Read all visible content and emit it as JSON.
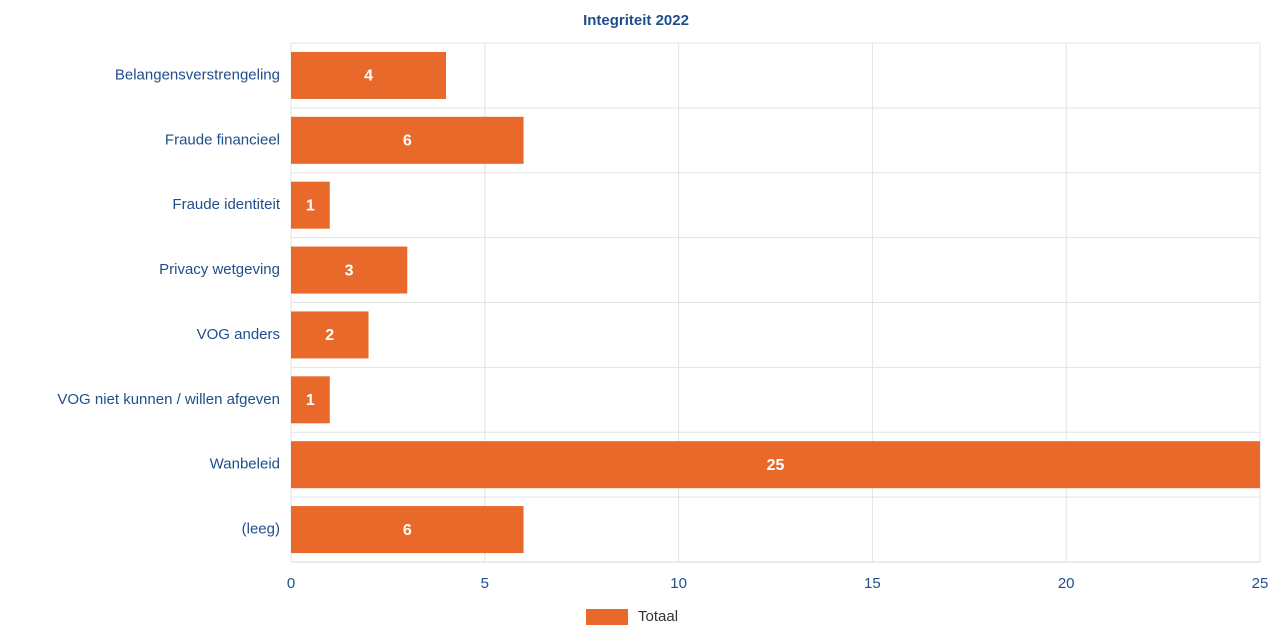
{
  "chart_data": {
    "type": "bar",
    "orientation": "horizontal",
    "title": "Integriteit 2022",
    "categories": [
      "Belangensverstrengeling",
      "Fraude financieel",
      "Fraude identiteit",
      "Privacy wetgeving",
      "VOG anders",
      "VOG niet kunnen / willen afgeven",
      "Wanbeleid",
      "(leeg)"
    ],
    "series": [
      {
        "name": "Totaal",
        "color": "#e8692a",
        "values": [
          4,
          6,
          1,
          3,
          2,
          1,
          25,
          6
        ]
      }
    ],
    "xlim": [
      0,
      25
    ],
    "xticks": [
      0,
      5,
      10,
      15,
      20,
      25
    ],
    "grid": true,
    "legend": "bottom"
  }
}
